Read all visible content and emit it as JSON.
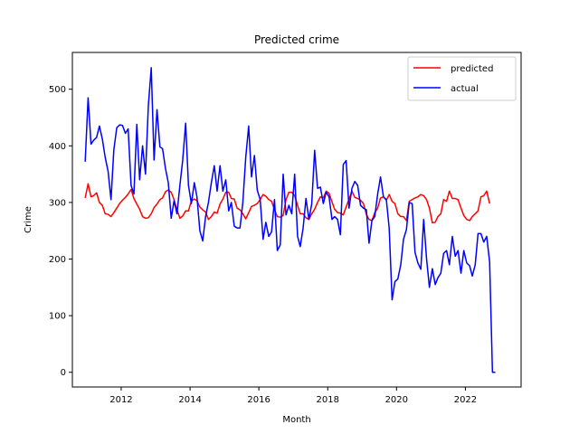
{
  "chart_data": {
    "type": "line",
    "title": "Predicted crime",
    "xlabel": "Month",
    "ylabel": "Crime",
    "xlim": [
      "2010-08-01",
      "2023-08-15"
    ],
    "ylim": [
      -26,
      565
    ],
    "xticks": [
      {
        "label": "2012",
        "date": "2012-01-01"
      },
      {
        "label": "2014",
        "date": "2014-01-01"
      },
      {
        "label": "2016",
        "date": "2016-01-01"
      },
      {
        "label": "2018",
        "date": "2018-01-01"
      },
      {
        "label": "2020",
        "date": "2020-01-01"
      },
      {
        "label": "2022",
        "date": "2022-01-01"
      }
    ],
    "yticks": [
      0,
      100,
      200,
      300,
      400,
      500
    ],
    "legend_position": "top-right",
    "grid": false,
    "x_start": "2010-12",
    "series": [
      {
        "name": "predicted",
        "color": "#ff0000",
        "values": [
          308,
          333,
          310,
          312,
          317,
          300,
          295,
          280,
          279,
          275,
          282,
          290,
          298,
          304,
          309,
          315,
          323,
          307,
          297,
          288,
          275,
          272,
          273,
          280,
          291,
          297,
          305,
          308,
          319,
          322,
          318,
          305,
          287,
          272,
          276,
          285,
          285,
          303,
          306,
          303,
          292,
          287,
          283,
          270,
          275,
          283,
          281,
          297,
          306,
          318,
          318,
          307,
          306,
          290,
          287,
          280,
          271,
          282,
          293,
          295,
          298,
          305,
          314,
          311,
          305,
          302,
          287,
          275,
          274,
          277,
          305,
          318,
          318,
          312,
          295,
          280,
          280,
          273,
          270,
          280,
          288,
          300,
          310,
          308,
          320,
          316,
          301,
          288,
          282,
          281,
          278,
          292,
          306,
          320,
          309,
          307,
          304,
          298,
          279,
          270,
          268,
          282,
          290,
          308,
          310,
          304,
          314,
          302,
          298,
          280,
          275,
          275,
          268,
          302,
          305,
          308,
          310,
          314,
          312,
          305,
          290,
          264,
          265,
          275,
          280,
          305,
          302,
          320,
          307,
          307,
          305,
          290,
          277,
          270,
          268,
          275,
          280,
          285,
          310,
          312,
          320,
          298
        ]
      },
      {
        "name": "actual",
        "color": "#0000ff",
        "values": [
          372,
          485,
          403,
          410,
          415,
          435,
          412,
          380,
          355,
          305,
          393,
          432,
          437,
          436,
          422,
          430,
          330,
          315,
          438,
          340,
          400,
          350,
          470,
          538,
          375,
          464,
          398,
          395,
          360,
          335,
          272,
          303,
          280,
          330,
          375,
          440,
          330,
          298,
          335,
          310,
          250,
          232,
          275,
          300,
          335,
          365,
          320,
          365,
          320,
          340,
          285,
          300,
          258,
          255,
          255,
          300,
          380,
          435,
          345,
          383,
          322,
          305,
          235,
          265,
          240,
          248,
          305,
          215,
          225,
          350,
          278,
          295,
          280,
          350,
          240,
          222,
          255,
          307,
          270,
          297,
          392,
          325,
          327,
          298,
          318,
          310,
          270,
          275,
          270,
          243,
          367,
          374,
          290,
          325,
          337,
          330,
          295,
          290,
          287,
          228,
          268,
          275,
          315,
          345,
          310,
          305,
          255,
          128,
          160,
          165,
          190,
          235,
          252,
          300,
          298,
          212,
          193,
          182,
          270,
          200,
          150,
          183,
          155,
          167,
          175,
          210,
          215,
          190,
          240,
          205,
          215,
          175,
          215,
          193,
          188,
          170,
          190,
          245,
          245,
          230,
          240,
          195,
          0,
          0
        ]
      }
    ]
  }
}
